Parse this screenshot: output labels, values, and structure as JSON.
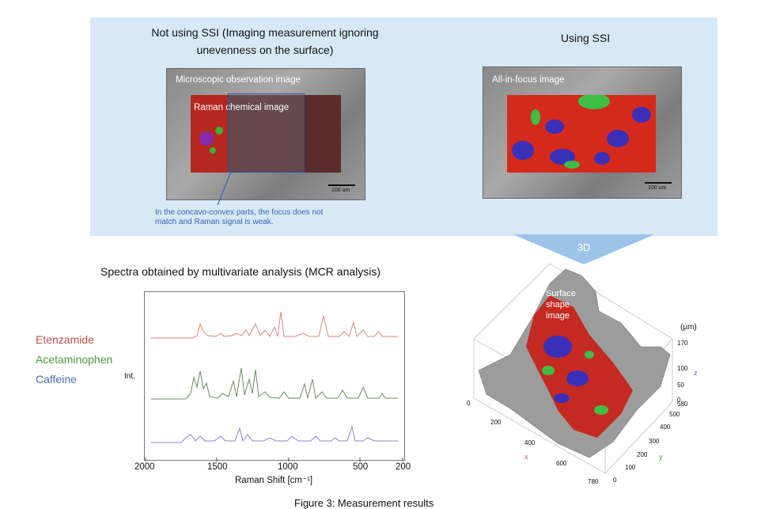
{
  "left_panel": {
    "title_line1": "Not using SSI (Imaging measurement ignoring",
    "title_line2": "unevenness on the surface)",
    "photo_label": "Microscopic observation image",
    "raman_label": "Raman chemical image",
    "scale_label": "100 um",
    "note_line1": "In the concavo-convex parts, the focus does not",
    "note_line2": "match and Raman signal is weak."
  },
  "right_panel": {
    "title": "Using SSI",
    "photo_label": "All-in-focus image",
    "scale_label": "100 um"
  },
  "arrow_label": "3D",
  "spectra": {
    "title": "Spectra obtained by multivariate analysis (MCR analysis)",
    "ylabel": "Int.",
    "xlabel": "Raman Shift [cm⁻¹]",
    "xticks": [
      "2000",
      "1500",
      "1000",
      "500",
      "200"
    ],
    "legend": [
      {
        "name": "Etenzamide",
        "color": "#c0504d"
      },
      {
        "name": "Acetaminophen",
        "color": "#4e9a3c"
      },
      {
        "name": "Caffeine",
        "color": "#4f6fb8"
      }
    ]
  },
  "surface": {
    "label_line1": "Surface",
    "label_line2": "shape",
    "label_line3": "image",
    "unit": "(μm)",
    "z_label": "z",
    "x_label": "x",
    "y_label": "y",
    "z_ticks": [
      "170",
      "100",
      "50",
      "0"
    ],
    "y_ticks": [
      "580",
      "500",
      "400",
      "300",
      "200",
      "100",
      "0"
    ],
    "x_ticks": [
      "0",
      "200",
      "400",
      "600",
      "780"
    ]
  },
  "caption": "Figure 3: Measurement results"
}
